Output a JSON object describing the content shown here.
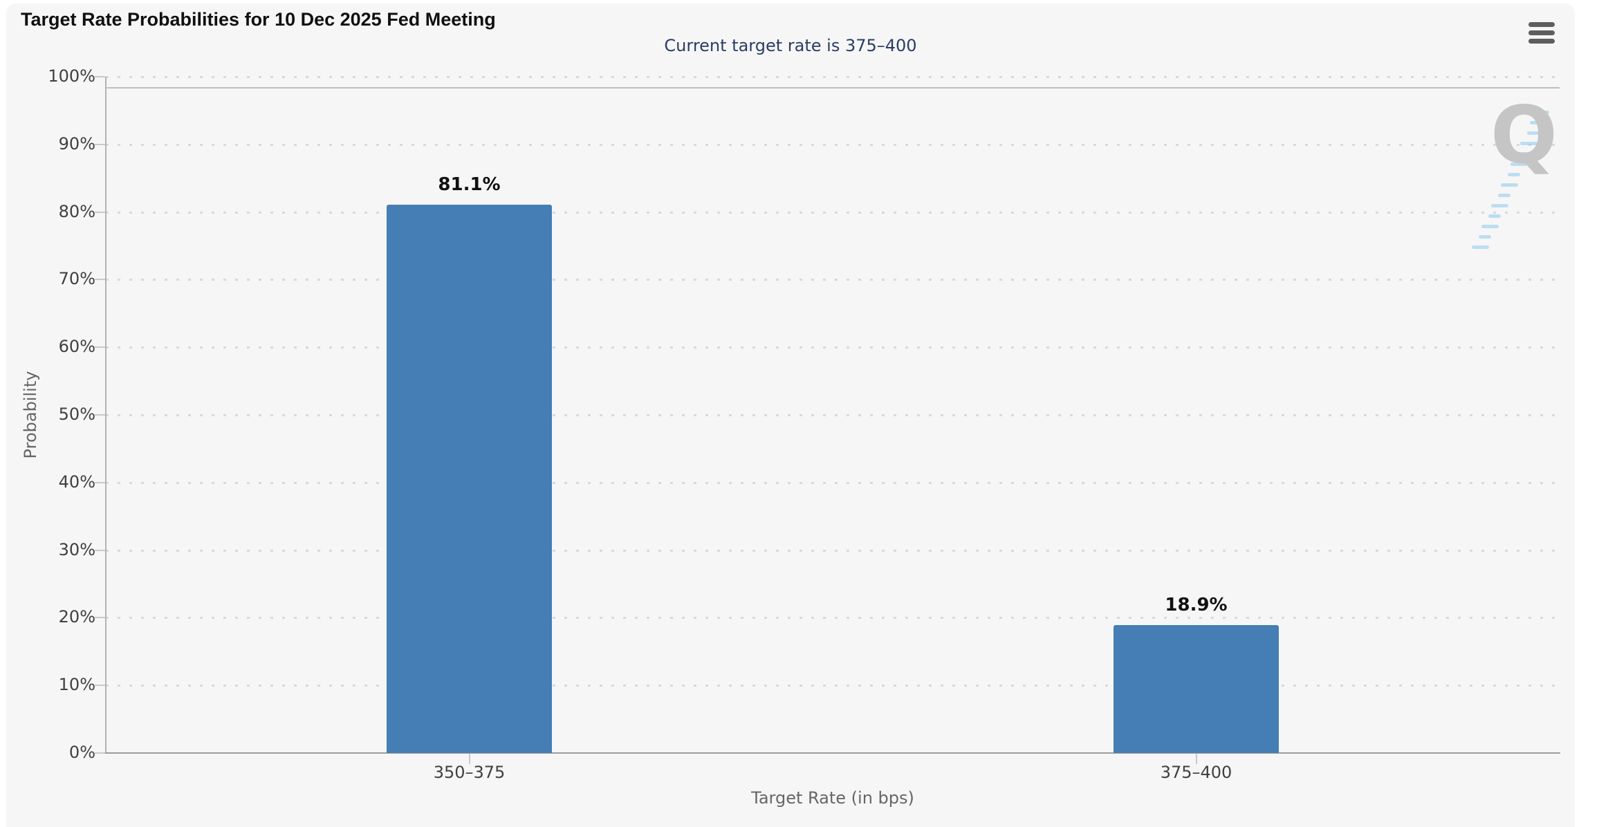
{
  "chart_data": {
    "type": "bar",
    "title": "Target Rate Probabilities for 10 Dec 2025 Fed Meeting",
    "subtitle": "Current target rate is 375–400",
    "xlabel": "Target Rate (in bps)",
    "ylabel": "Probability",
    "categories": [
      "350–375",
      "375–400"
    ],
    "values": [
      81.1,
      18.9
    ],
    "data_labels": [
      "81.1%",
      "18.9%"
    ],
    "ytick_labels": [
      "0%",
      "10%",
      "20%",
      "30%",
      "40%",
      "50%",
      "60%",
      "70%",
      "80%",
      "90%",
      "100%"
    ],
    "ylim": [
      0,
      100
    ],
    "grid": "horizontal-dotted",
    "legend": "none",
    "bar_color": "#447eb4"
  },
  "menu": {
    "icon": "hamburger-menu-icon"
  },
  "watermark": {
    "letter": "Q"
  },
  "colors": {
    "page_bg": "#ffffff",
    "container_bg": "#f6f6f6",
    "bar": "#447eb4",
    "subtitle_text": "#2b3d63",
    "axis_label": "#404040",
    "axis_title": "#666666",
    "grid_dot": "#d9d9d9",
    "axis_line": "#9c9c9c",
    "data_label": "#111111",
    "watermark_gray": "#c5c5c5"
  }
}
